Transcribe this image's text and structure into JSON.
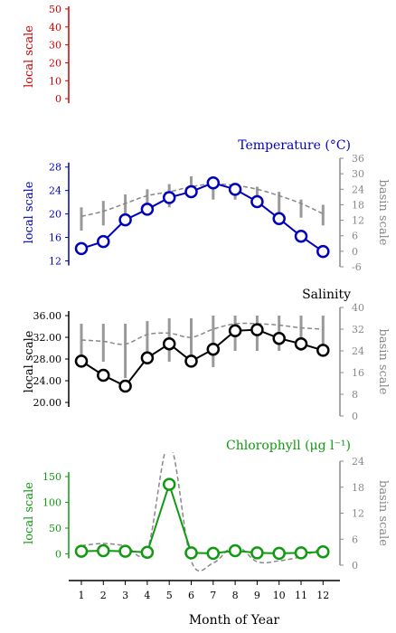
{
  "figure": {
    "xlabel": "Month of Year",
    "local_label": "local scale",
    "basin_label": "basin scale"
  },
  "colors": {
    "oxygen": "#cc0000",
    "temperature": "#0000bb",
    "salinity": "#000000",
    "chlorophyll": "#119911",
    "basin": "#888888"
  },
  "chart_data": [
    {
      "type": "line",
      "id": "top",
      "title": "",
      "ylabel": "local scale",
      "local_ticks": [
        0,
        10,
        20,
        30,
        40,
        50
      ],
      "local_ylim": [
        -8,
        55
      ],
      "x": [],
      "local": [],
      "basin_mean": [],
      "basin_ranges": []
    },
    {
      "type": "line",
      "id": "temperature",
      "title": "Temperature (°C)",
      "ylabel": "local scale",
      "y2label": "basin scale",
      "local_ticks": [
        12,
        16,
        20,
        24,
        28
      ],
      "local_ylim": [
        11,
        29.5
      ],
      "basin_ticks": [
        -6,
        0,
        6,
        12,
        18,
        24,
        30,
        36
      ],
      "basin_ylim": [
        -6,
        36
      ],
      "x": [
        1,
        2,
        3,
        4,
        5,
        6,
        7,
        8,
        9,
        10,
        11,
        12
      ],
      "local": [
        14.1,
        15.3,
        19.0,
        20.8,
        22.8,
        23.8,
        25.3,
        24.2,
        22.1,
        19.2,
        16.2,
        13.6
      ],
      "basin_mean": [
        13.5,
        15.5,
        18.5,
        21.5,
        23.0,
        25.0,
        26.0,
        25.5,
        24.0,
        21.5,
        18.5,
        14.5
      ],
      "basin_ranges": [
        [
          8,
          17
        ],
        [
          10,
          19.5
        ],
        [
          14,
          22
        ],
        [
          17,
          24
        ],
        [
          17,
          26
        ],
        [
          21,
          29
        ],
        [
          20,
          28
        ],
        [
          20,
          26
        ],
        [
          19,
          25
        ],
        [
          15,
          23
        ],
        [
          13,
          20
        ],
        [
          10,
          18
        ]
      ]
    },
    {
      "type": "line",
      "id": "salinity",
      "title": "Salinity",
      "ylabel": "local scale",
      "y2label": "basin scale",
      "local_ticks": [
        "20.00",
        "24.00",
        "28.00",
        "32.00",
        "36.00"
      ],
      "local_ylim": [
        17.5,
        37.5
      ],
      "basin_ticks": [
        0,
        8,
        16,
        24,
        32,
        40
      ],
      "basin_ylim": [
        0,
        40
      ],
      "x": [
        1,
        2,
        3,
        4,
        5,
        6,
        7,
        8,
        9,
        10,
        11,
        12
      ],
      "local": [
        27.6,
        25.0,
        23.0,
        28.2,
        30.8,
        27.6,
        29.8,
        33.2,
        33.4,
        31.8,
        30.8,
        29.6
      ],
      "basin_mean": [
        28.0,
        27.5,
        26.5,
        30.0,
        30.5,
        29.0,
        32.0,
        34.0,
        34.0,
        33.5,
        32.5,
        32.0
      ],
      "basin_ranges": [
        [
          22,
          34
        ],
        [
          20,
          34
        ],
        [
          14,
          34
        ],
        [
          20,
          35
        ],
        [
          20,
          36
        ],
        [
          18,
          36
        ],
        [
          18,
          37
        ],
        [
          24,
          37
        ],
        [
          24,
          37
        ],
        [
          24,
          37
        ],
        [
          24,
          37
        ],
        [
          22,
          37
        ]
      ]
    },
    {
      "type": "line",
      "id": "chlorophyll",
      "title": "Chlorophyll (μg l⁻¹)",
      "ylabel": "local scale",
      "y2label": "basin scale",
      "local_ticks": [
        0,
        50,
        100,
        150
      ],
      "local_ylim": [
        -22,
        180
      ],
      "basin_ticks": [
        0,
        6,
        12,
        18,
        24
      ],
      "basin_ylim": [
        0,
        24
      ],
      "x": [
        1,
        2,
        3,
        4,
        5,
        6,
        7,
        8,
        9,
        10,
        11,
        12
      ],
      "local": [
        5,
        6,
        5,
        3,
        135,
        2,
        1,
        6,
        2,
        1,
        2,
        4
      ],
      "basin_mean": [
        4.5,
        5.0,
        4.5,
        3.5,
        28.0,
        1.0,
        0.5,
        4.5,
        0.8,
        1.0,
        2.0,
        4.0
      ],
      "basin_ranges": []
    }
  ],
  "x_ticks": [
    "1",
    "2",
    "3",
    "4",
    "5",
    "6",
    "7",
    "8",
    "9",
    "10",
    "11",
    "12"
  ]
}
